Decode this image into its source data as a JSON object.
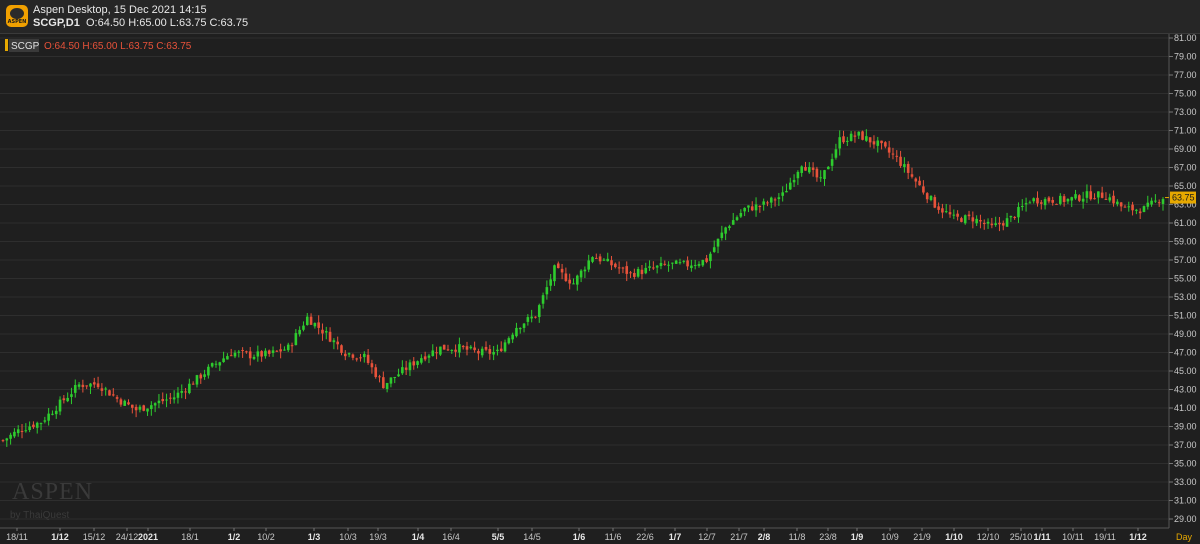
{
  "window": {
    "app_title": "Aspen Desktop, 15 Dec 2021 14:15",
    "logo_text": "ASPEN"
  },
  "header": {
    "symbol_timeframe": "SCGP,D1",
    "ohlc": "O:64.50 H:65.00 L:63.75 C:63.75"
  },
  "legend": {
    "symbol": "SCGP",
    "ohlc": "O:64.50 H:65.00 L:63.75 C:63.75"
  },
  "watermark": {
    "brand": "ASPEN",
    "by": "by ThaiQuest"
  },
  "colors": {
    "background": "#1f1f1f",
    "up": "#2ecc2e",
    "down": "#e8523a",
    "grid": "#2e2e2e",
    "price_label": "#e6a800",
    "text": "#c8c8c8"
  },
  "chart_data": {
    "type": "candlestick",
    "symbol": "SCGP",
    "timeframe": "D1",
    "last_price": "63.75",
    "period_label": "Day",
    "ylim": [
      29.0,
      81.0
    ],
    "y_ticks": [
      "81.00",
      "79.00",
      "77.00",
      "75.00",
      "73.00",
      "71.00",
      "69.00",
      "67.00",
      "65.00",
      "63.00",
      "61.00",
      "59.00",
      "57.00",
      "55.00",
      "53.00",
      "51.00",
      "49.00",
      "47.00",
      "45.00",
      "43.00",
      "41.00",
      "39.00",
      "37.00",
      "35.00",
      "33.00",
      "31.00",
      "29.00"
    ],
    "x_ticks": [
      {
        "label": "18/11",
        "bold": false
      },
      {
        "label": "1/12",
        "bold": true
      },
      {
        "label": "15/12",
        "bold": false
      },
      {
        "label": "24/12",
        "bold": false
      },
      {
        "label": "2021",
        "bold": true
      },
      {
        "label": "18/1",
        "bold": false
      },
      {
        "label": "1/2",
        "bold": true
      },
      {
        "label": "10/2",
        "bold": false
      },
      {
        "label": "1/3",
        "bold": true
      },
      {
        "label": "10/3",
        "bold": false
      },
      {
        "label": "19/3",
        "bold": false
      },
      {
        "label": "1/4",
        "bold": true
      },
      {
        "label": "16/4",
        "bold": false
      },
      {
        "label": "5/5",
        "bold": true
      },
      {
        "label": "14/5",
        "bold": false
      },
      {
        "label": "1/6",
        "bold": true
      },
      {
        "label": "11/6",
        "bold": false
      },
      {
        "label": "22/6",
        "bold": false
      },
      {
        "label": "1/7",
        "bold": true
      },
      {
        "label": "12/7",
        "bold": false
      },
      {
        "label": "21/7",
        "bold": false
      },
      {
        "label": "2/8",
        "bold": true
      },
      {
        "label": "11/8",
        "bold": false
      },
      {
        "label": "23/8",
        "bold": false
      },
      {
        "label": "1/9",
        "bold": true
      },
      {
        "label": "10/9",
        "bold": false
      },
      {
        "label": "21/9",
        "bold": false
      },
      {
        "label": "1/10",
        "bold": true
      },
      {
        "label": "12/10",
        "bold": false
      },
      {
        "label": "25/10",
        "bold": false
      },
      {
        "label": "1/11",
        "bold": true
      },
      {
        "label": "10/11",
        "bold": false
      },
      {
        "label": "19/11",
        "bold": false
      },
      {
        "label": "1/12",
        "bold": true
      }
    ],
    "anchors": [
      [
        0,
        37.5
      ],
      [
        5,
        38.8
      ],
      [
        10,
        39.5
      ],
      [
        15,
        41.5
      ],
      [
        20,
        43.5
      ],
      [
        25,
        43.6
      ],
      [
        30,
        42.0
      ],
      [
        35,
        40.8
      ],
      [
        40,
        41.5
      ],
      [
        45,
        42.2
      ],
      [
        50,
        43.8
      ],
      [
        55,
        45.5
      ],
      [
        60,
        47.0
      ],
      [
        65,
        46.7
      ],
      [
        70,
        46.8
      ],
      [
        75,
        47.5
      ],
      [
        80,
        50.8
      ],
      [
        85,
        49.0
      ],
      [
        90,
        47.0
      ],
      [
        95,
        46.5
      ],
      [
        100,
        43.5
      ],
      [
        105,
        45.0
      ],
      [
        110,
        46.5
      ],
      [
        115,
        47.5
      ],
      [
        120,
        47.5
      ],
      [
        125,
        47.0
      ],
      [
        130,
        47.0
      ],
      [
        135,
        49.8
      ],
      [
        140,
        51.0
      ],
      [
        145,
        56.0
      ],
      [
        150,
        54.5
      ],
      [
        155,
        57.5
      ],
      [
        160,
        56.5
      ],
      [
        165,
        55.5
      ],
      [
        170,
        56.0
      ],
      [
        175,
        56.5
      ],
      [
        180,
        56.5
      ],
      [
        185,
        57.0
      ],
      [
        190,
        60.5
      ],
      [
        195,
        62.5
      ],
      [
        200,
        63.0
      ],
      [
        205,
        64.0
      ],
      [
        210,
        67.5
      ],
      [
        215,
        65.5
      ],
      [
        220,
        70.0
      ],
      [
        225,
        70.5
      ],
      [
        230,
        69.5
      ],
      [
        235,
        68.0
      ],
      [
        240,
        65.5
      ],
      [
        245,
        63.0
      ],
      [
        250,
        61.5
      ],
      [
        255,
        61.5
      ],
      [
        260,
        60.5
      ],
      [
        265,
        61.5
      ],
      [
        270,
        63.5
      ],
      [
        275,
        63.5
      ],
      [
        280,
        63.5
      ],
      [
        285,
        64.0
      ],
      [
        290,
        64.0
      ],
      [
        295,
        62.5
      ],
      [
        300,
        62.5
      ],
      [
        305,
        63.8
      ]
    ]
  }
}
